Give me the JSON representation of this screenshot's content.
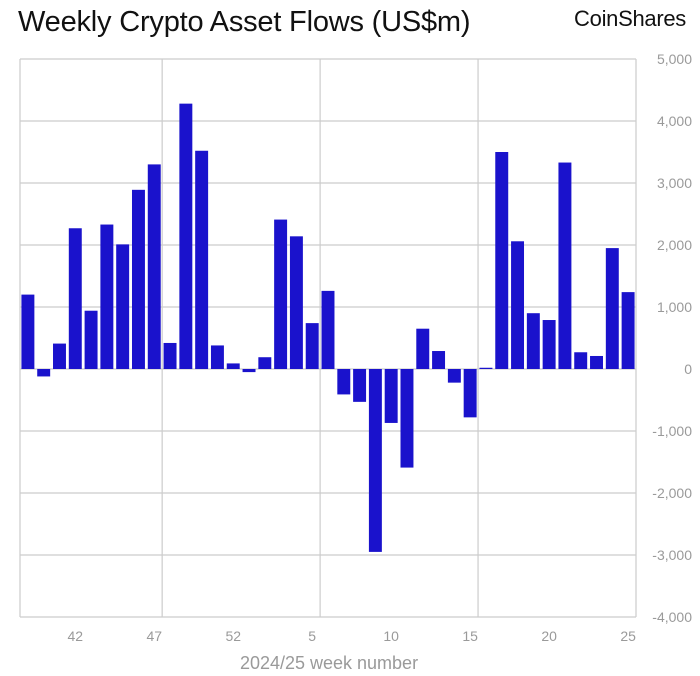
{
  "header": {
    "title": "Weekly Crypto Asset Flows (US$m)",
    "logo_text": "CoinShares"
  },
  "chart_data": {
    "type": "bar",
    "title": "Weekly Crypto Asset Flows (US$m)",
    "xlabel": "2024/25 week number",
    "ylabel": "",
    "ylim": [
      -4000,
      5000
    ],
    "yticks": [
      -4000,
      -3000,
      -2000,
      -1000,
      0,
      1000,
      2000,
      3000,
      4000,
      5000
    ],
    "ytick_labels": [
      "-4,000",
      "-3,000",
      "-2,000",
      "-1,000",
      "0",
      "1,000",
      "2,000",
      "3,000",
      "4,000",
      "5,000"
    ],
    "x_tick_labels": [
      {
        "index": 3,
        "label": "42"
      },
      {
        "index": 8,
        "label": "47"
      },
      {
        "index": 13,
        "label": "52"
      },
      {
        "index": 18,
        "label": "5"
      },
      {
        "index": 23,
        "label": "10"
      },
      {
        "index": 28,
        "label": "15"
      },
      {
        "index": 33,
        "label": "20"
      },
      {
        "index": 38,
        "label": "25"
      }
    ],
    "vertical_gridlines_after_index": [
      8,
      18,
      28
    ],
    "grid": true,
    "bar_color": "#1a12cc",
    "weeks": [
      "39",
      "40",
      "41",
      "42",
      "43",
      "44",
      "45",
      "46",
      "47",
      "48",
      "49",
      "50",
      "51",
      "52",
      "1",
      "2",
      "3",
      "4",
      "5",
      "6",
      "7",
      "8",
      "9",
      "10",
      "11",
      "12",
      "13",
      "14",
      "15",
      "16",
      "17",
      "18",
      "19",
      "20",
      "21",
      "22",
      "23",
      "24",
      "25"
    ],
    "values": [
      1200,
      -120,
      410,
      2270,
      940,
      2330,
      2010,
      2890,
      3300,
      420,
      4280,
      3520,
      380,
      90,
      -50,
      190,
      2410,
      2140,
      740,
      1260,
      -410,
      -530,
      -2950,
      -870,
      -1590,
      650,
      290,
      -220,
      -780,
      20,
      3500,
      2060,
      900,
      790,
      3330,
      270,
      210,
      1950,
      1240
    ]
  }
}
